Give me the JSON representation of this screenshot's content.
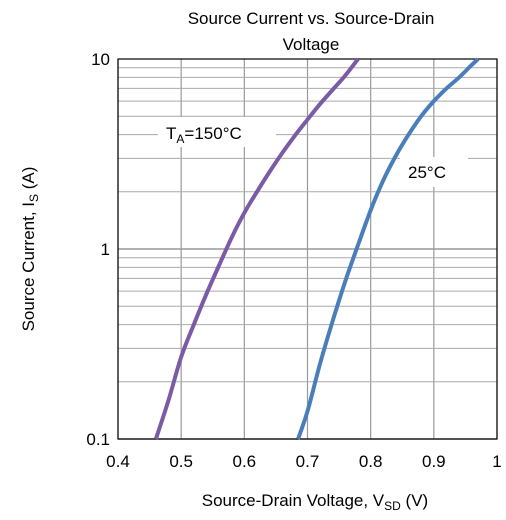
{
  "chart_data": {
    "type": "line",
    "title_line1": "Source Current vs. Source-Drain",
    "title_line2": "Voltage",
    "xlabel": {
      "main": "Source-Drain Voltage, V",
      "sub": "SD",
      "unit": " (V)"
    },
    "ylabel": {
      "main": "Source Current, I",
      "sub": "S",
      "unit": " (A)"
    },
    "xlim": [
      0.4,
      1.0
    ],
    "ylim": [
      0.1,
      10
    ],
    "y_scale": "log",
    "grid": true,
    "x_ticks": [
      0.4,
      0.5,
      0.6,
      0.7,
      0.8,
      0.9,
      1.0
    ],
    "x_tick_labels": [
      "0.4",
      "0.5",
      "0.6",
      "0.7",
      "0.8",
      "0.9",
      "1"
    ],
    "y_ticks": [
      0.1,
      1,
      10
    ],
    "y_tick_labels": [
      "0.1",
      "1",
      "10"
    ],
    "series": [
      {
        "label_main": "T",
        "label_sub": "A",
        "label_rest": "=150°C",
        "color": "#7b5aa6",
        "x": [
          0.46,
          0.48,
          0.5,
          0.52,
          0.54,
          0.56,
          0.58,
          0.6,
          0.62,
          0.64,
          0.66,
          0.68,
          0.7,
          0.72,
          0.74,
          0.76,
          0.78
        ],
        "y": [
          0.1,
          0.16,
          0.27,
          0.4,
          0.58,
          0.82,
          1.15,
          1.55,
          2.0,
          2.55,
          3.2,
          3.95,
          4.8,
          5.8,
          6.9,
          8.2,
          10
        ]
      },
      {
        "label_main": "25°C",
        "color": "#4a7ebb",
        "x": [
          0.685,
          0.7,
          0.72,
          0.74,
          0.76,
          0.78,
          0.8,
          0.82,
          0.84,
          0.86,
          0.88,
          0.9,
          0.92,
          0.94,
          0.96,
          0.97
        ],
        "y": [
          0.1,
          0.14,
          0.25,
          0.42,
          0.68,
          1.05,
          1.6,
          2.3,
          3.1,
          4.0,
          5.0,
          6.0,
          7.0,
          8.0,
          9.3,
          10
        ]
      }
    ]
  }
}
